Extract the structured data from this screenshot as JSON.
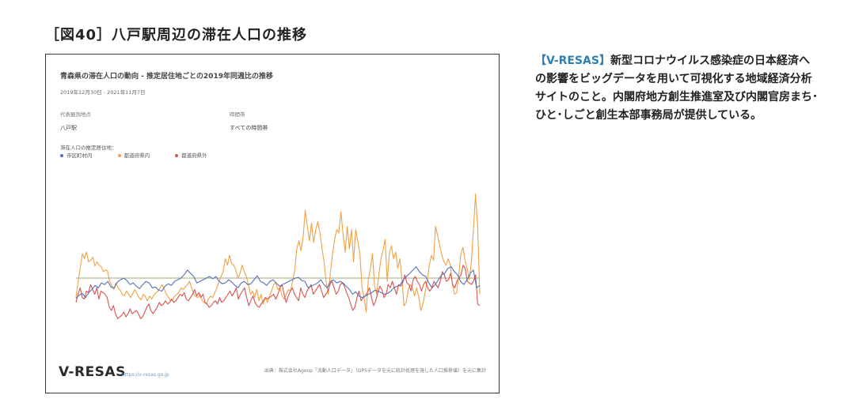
{
  "figure_title": "［図40］八戸駅周辺の滞在人口の推移",
  "note": {
    "accent": "【V-RESAS】",
    "text": "新型コロナウイルス感染症の日本経済への影響をビッグデータを用いて可視化する地域経済分析サイトのこと。内閣府地方創生推進室及び内閣官房まち･ひと･しごと創生本部事務局が提供している。"
  },
  "panel": {
    "title": "青森県の滞在人口の動向 - 推定居住地ごとの2019年同週比の推移",
    "period": "2019年12月30日 - 2021年11月7日",
    "fields": [
      {
        "label": "代表観測地点",
        "value": "八戸駅"
      },
      {
        "label": "時間帯",
        "value": "すべての時間帯"
      }
    ],
    "legend_title": "滞在人口の推定居住地：",
    "brand": "V-RESAS",
    "brand_url": "https://v-resas.go.jp",
    "source": "出典：株式会社Agoop「流動人口データ」（GPSデータを元に統計処理を施した人口推移値）を元に集計"
  },
  "chart_data": {
    "type": "line",
    "title": "青森県の滞在人口の動向 - 推定居住地ごとの2019年同週比の推移",
    "xlabel": "",
    "ylabel": "",
    "x_range": [
      "2019-12-30",
      "2021-11-07"
    ],
    "ylim": [
      -400,
      600
    ],
    "grid": false,
    "legend_position": "top-left",
    "colors": {
      "市区町村内": "#5571b5",
      "都道府県内": "#f0a144",
      "都道府県外": "#d9534f",
      "zero_line": "#8c8c50"
    },
    "series": [
      {
        "name": "市区町村内",
        "values": [
          -125,
          -105,
          -95,
          -120,
          -90,
          -70,
          -45,
          -60,
          -30,
          -40,
          -20,
          -55,
          -60,
          -25,
          -10,
          0,
          -15,
          -40,
          -30,
          -50,
          -65,
          -40,
          -20,
          -30,
          -60,
          -55,
          -75,
          -80,
          -50,
          -35,
          -45,
          -20,
          -10,
          0,
          20,
          50,
          30,
          10,
          -30,
          -20,
          -10,
          0,
          10,
          -5,
          10,
          -20,
          -35,
          -30,
          -10,
          -25,
          -45,
          -60,
          -30,
          -20,
          -40,
          -35,
          -10,
          15,
          -20,
          -30,
          -45,
          -20,
          -10,
          -30,
          -50,
          -40,
          -30,
          -20,
          -10,
          0,
          5,
          -15,
          -20,
          -60,
          -50,
          -40,
          -30,
          -10,
          -40,
          -60,
          -20,
          -10,
          -30,
          -20,
          -30,
          -50,
          -70,
          -100,
          -85,
          -110,
          -120,
          -110,
          -100,
          -90,
          -75,
          -80,
          -90,
          -100,
          -95,
          -80,
          -60,
          -50,
          -40,
          -10,
          10,
          30,
          50,
          70,
          40,
          20,
          10,
          -30,
          -60,
          -40,
          -10,
          20,
          30,
          60,
          70,
          40,
          20,
          -20,
          -40,
          -10,
          30,
          50,
          -60,
          -45
        ]
      },
      {
        "name": "都道府県内",
        "values": [
          -120,
          -20,
          60,
          150,
          120,
          160,
          100,
          110,
          130,
          75,
          100,
          80,
          70,
          40,
          50,
          45,
          -20,
          -45,
          -70,
          -30,
          -60,
          -75,
          -100,
          -110,
          -80,
          -100,
          -120,
          -95,
          -70,
          -95,
          -120,
          -135,
          -100,
          -115,
          -140,
          -110,
          -130,
          -105,
          -90,
          -80,
          -60,
          -40,
          -70,
          -100,
          -120,
          -140,
          -130,
          -110,
          -100,
          -85,
          -60,
          -70,
          -55,
          -40,
          -20,
          -60,
          -100,
          -115,
          -120,
          -100,
          -140,
          -150,
          -160,
          -130,
          -110,
          -120,
          -90,
          -60,
          -20,
          10,
          40,
          120,
          80,
          140,
          90,
          80,
          50,
          0,
          30,
          80,
          40,
          10,
          -40,
          -100,
          -80,
          -120,
          -70,
          -140,
          -100,
          -160,
          -120,
          -150,
          -110,
          -80,
          -40,
          -30,
          -70,
          -60,
          -110,
          -130,
          -100,
          -70,
          -80,
          -20,
          50,
          180,
          230,
          170,
          250,
          420,
          320,
          230,
          340,
          220,
          300,
          350,
          280,
          180,
          100,
          -30,
          -100,
          40,
          150,
          240,
          300,
          280,
          410,
          270,
          160,
          320,
          180,
          300,
          100,
          300,
          230,
          150,
          -60,
          -120,
          -210,
          -10,
          60,
          150,
          -50,
          -100,
          20,
          120,
          170,
          240,
          -20,
          150,
          200,
          120,
          160,
          60,
          120,
          -10,
          -170,
          -150,
          -70,
          -40,
          -60,
          -110,
          -60,
          -120,
          -200,
          -160,
          -90,
          -20,
          80,
          140,
          110,
          320,
          260,
          200,
          140,
          100,
          80,
          120,
          80,
          -40,
          -100,
          -90,
          10,
          150,
          190,
          110,
          60,
          -10,
          100,
          300,
          520,
          320,
          -100
        ]
      },
      {
        "name": "都道府県外",
        "values": [
          -150,
          -100,
          -60,
          -120,
          -130,
          -80,
          -90,
          -40,
          -70,
          -100,
          -60,
          -130,
          -80,
          -90,
          -100,
          -120,
          -180,
          -200,
          -170,
          -220,
          -250,
          -240,
          -230,
          -210,
          -240,
          -220,
          -190,
          -220,
          -210,
          -200,
          -220,
          -250,
          -240,
          -210,
          -180,
          -160,
          -200,
          -220,
          -200,
          -180,
          -150,
          -170,
          -160,
          -140,
          -160,
          -150,
          -130,
          -150,
          -140,
          -120,
          -100,
          -110,
          -90,
          -130,
          -140,
          -120,
          -100,
          -70,
          -110,
          -90,
          -120,
          -100,
          -150,
          -160,
          -180,
          -170,
          -150,
          -140,
          -160,
          -120,
          -150,
          -140,
          -120,
          -100,
          -80,
          -110,
          -90,
          -60,
          -130,
          -100,
          -80,
          -60,
          -120,
          -170,
          -140,
          -110,
          -150,
          -170,
          -180,
          -160,
          -140,
          -120,
          -130,
          -120,
          -110,
          -100,
          -130,
          -100,
          -60,
          -40,
          -100,
          -150,
          -110,
          -80,
          -60,
          -100,
          -120,
          -140,
          -60,
          -100,
          -120,
          -80,
          -60,
          -40,
          -100,
          -80,
          -60,
          -40,
          -80,
          -120,
          -100,
          -80,
          -40,
          -20,
          -60,
          -100,
          -80,
          -40,
          -30,
          -50,
          -90,
          -120,
          -160,
          -200,
          -180,
          -120,
          -80,
          -140,
          -120,
          -110,
          -90,
          -60,
          -120,
          -170,
          -140,
          -90,
          -50,
          -70,
          -120,
          -100,
          -40,
          -60,
          -20,
          -60,
          -100,
          -40,
          -50,
          -30,
          20,
          -30,
          -40,
          -80,
          -10,
          10,
          -20,
          -40,
          -80,
          -40,
          -20,
          -60,
          -80,
          -60,
          -20,
          -40,
          -60,
          -20,
          40,
          20,
          -20,
          -10,
          30,
          -40,
          -60,
          -20,
          0,
          20,
          80,
          60,
          -20,
          -30,
          -40,
          -20,
          20,
          -160,
          -170
        ]
      }
    ]
  }
}
